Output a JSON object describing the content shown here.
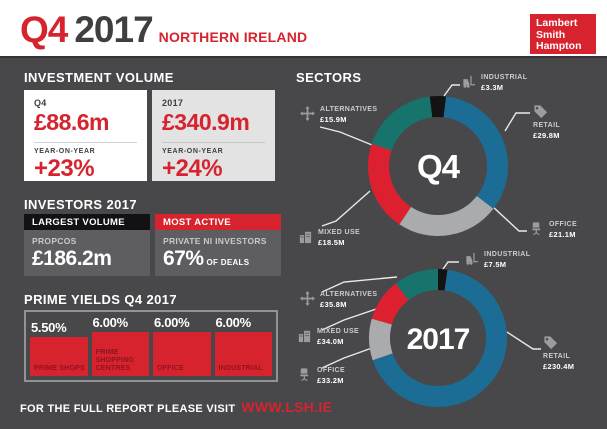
{
  "header": {
    "q": "Q4",
    "year": "2017",
    "region": "NORTHERN IRELAND",
    "logo_lines": [
      "Lambert",
      "Smith",
      "Hampton"
    ]
  },
  "investment_volume": {
    "title": "INVESTMENT VOLUME",
    "cards": [
      {
        "period": "Q4",
        "value": "£88.6m",
        "yoy_label": "YEAR-ON-YEAR",
        "yoy": "+23%"
      },
      {
        "period": "2017",
        "value": "£340.9m",
        "yoy_label": "YEAR-ON-YEAR",
        "yoy": "+24%"
      }
    ]
  },
  "investors": {
    "title": "INVESTORS 2017",
    "cards": [
      {
        "header": "LARGEST VOLUME",
        "subtitle": "PROPCOS",
        "value": "£186.2m",
        "suffix": ""
      },
      {
        "header": "MOST ACTIVE",
        "subtitle": "PRIVATE NI INVESTORS",
        "value": "67%",
        "suffix": "OF DEALS"
      }
    ]
  },
  "prime_yields": {
    "title": "PRIME YIELDS Q4 2017",
    "items": [
      {
        "value": "5.50%",
        "label": "PRIME SHOPS"
      },
      {
        "value": "6.00%",
        "label": "PRIME SHOPPING CENTRES"
      },
      {
        "value": "6.00%",
        "label": "OFFICE"
      },
      {
        "value": "6.00%",
        "label": "INDUSTRIAL"
      }
    ]
  },
  "sectors": {
    "title": "SECTORS"
  },
  "footer": {
    "text": "FOR THE FULL REPORT PLEASE VISIT",
    "link": "WWW.LSH.IE"
  },
  "colors": {
    "background": "#48484a",
    "accent_red": "#d7232e",
    "header_bg": "#ffffff",
    "dark_text": "#3f3f41",
    "card_gray": "#e3e3e4",
    "panel_gray": "#5e5e61",
    "donut_blue": "#1c6d95",
    "donut_teal": "#16746d",
    "donut_gray": "#a9abad",
    "donut_red": "#dd2030",
    "donut_black": "#131313",
    "icon_gray": "#9b9c9e"
  },
  "chart_data": [
    {
      "type": "pie",
      "title": "Q4 sectors investment volume",
      "center_label": "Q4",
      "unit": "£m",
      "total": 88.6,
      "legend_position": "around",
      "items": [
        {
          "label": "INDUSTRIAL",
          "value": 3.3,
          "display": "£3.3M",
          "color": "#131313"
        },
        {
          "label": "RETAIL",
          "value": 29.8,
          "display": "£29.8M",
          "color": "#1c6d95"
        },
        {
          "label": "OFFICE",
          "value": 21.1,
          "display": "£21.1M",
          "color": "#a9abad"
        },
        {
          "label": "MIXED USE",
          "value": 18.5,
          "display": "£18.5M",
          "color": "#dd2030"
        },
        {
          "label": "ALTERNATIVES",
          "value": 15.9,
          "display": "£15.9M",
          "color": "#16746d"
        }
      ]
    },
    {
      "type": "pie",
      "title": "2017 sectors investment volume",
      "center_label": "2017",
      "unit": "£m",
      "total": 340.9,
      "legend_position": "around",
      "items": [
        {
          "label": "INDUSTRIAL",
          "value": 7.5,
          "display": "£7.5M",
          "color": "#131313"
        },
        {
          "label": "RETAIL",
          "value": 230.4,
          "display": "£230.4M",
          "color": "#1c6d95"
        },
        {
          "label": "OFFICE",
          "value": 33.2,
          "display": "£33.2M",
          "color": "#a9abad"
        },
        {
          "label": "MIXED USE",
          "value": 34.0,
          "display": "£34.0M",
          "color": "#dd2030"
        },
        {
          "label": "ALTERNATIVES",
          "value": 35.8,
          "display": "£35.8M",
          "color": "#16746d"
        }
      ]
    },
    {
      "type": "bar",
      "title": "PRIME YIELDS Q4 2017",
      "categories": [
        "PRIME SHOPS",
        "PRIME SHOPPING CENTRES",
        "OFFICE",
        "INDUSTRIAL"
      ],
      "values": [
        5.5,
        6.0,
        6.0,
        6.0
      ],
      "unit": "%",
      "ylim": [
        0,
        6
      ]
    }
  ]
}
